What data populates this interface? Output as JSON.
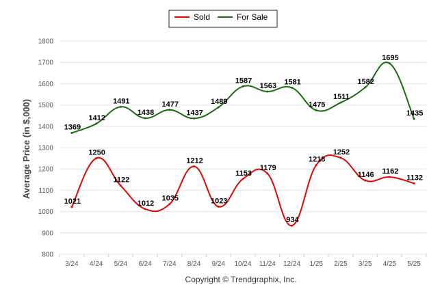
{
  "chart_data": {
    "type": "line",
    "categories": [
      "3/24",
      "4/24",
      "5/24",
      "6/24",
      "7/24",
      "8/24",
      "9/24",
      "10/24",
      "11/24",
      "12/24",
      "1/25",
      "2/25",
      "3/25",
      "4/25",
      "5/25"
    ],
    "series": [
      {
        "name": "Sold",
        "color": "#e10600",
        "values": [
          1021,
          1250,
          1122,
          1012,
          1035,
          1212,
          1023,
          1153,
          1179,
          934,
          1218,
          1252,
          1146,
          1162,
          1132
        ]
      },
      {
        "name": "For Sale",
        "color": "#1a6b0f",
        "values": [
          1369,
          1412,
          1491,
          1438,
          1477,
          1437,
          1489,
          1587,
          1563,
          1581,
          1475,
          1511,
          1582,
          1695,
          1435
        ]
      }
    ],
    "ylabel": "Average Price (in $,000)",
    "xlabel": "",
    "ylim": [
      800,
      1800
    ],
    "yticks": [
      800,
      900,
      1000,
      1100,
      1200,
      1300,
      1400,
      1500,
      1600,
      1700,
      1800
    ],
    "grid": true,
    "legend_position": "top-center",
    "smooth": true
  },
  "footer": {
    "credit": "Copyright © Trendgraphix, Inc."
  }
}
